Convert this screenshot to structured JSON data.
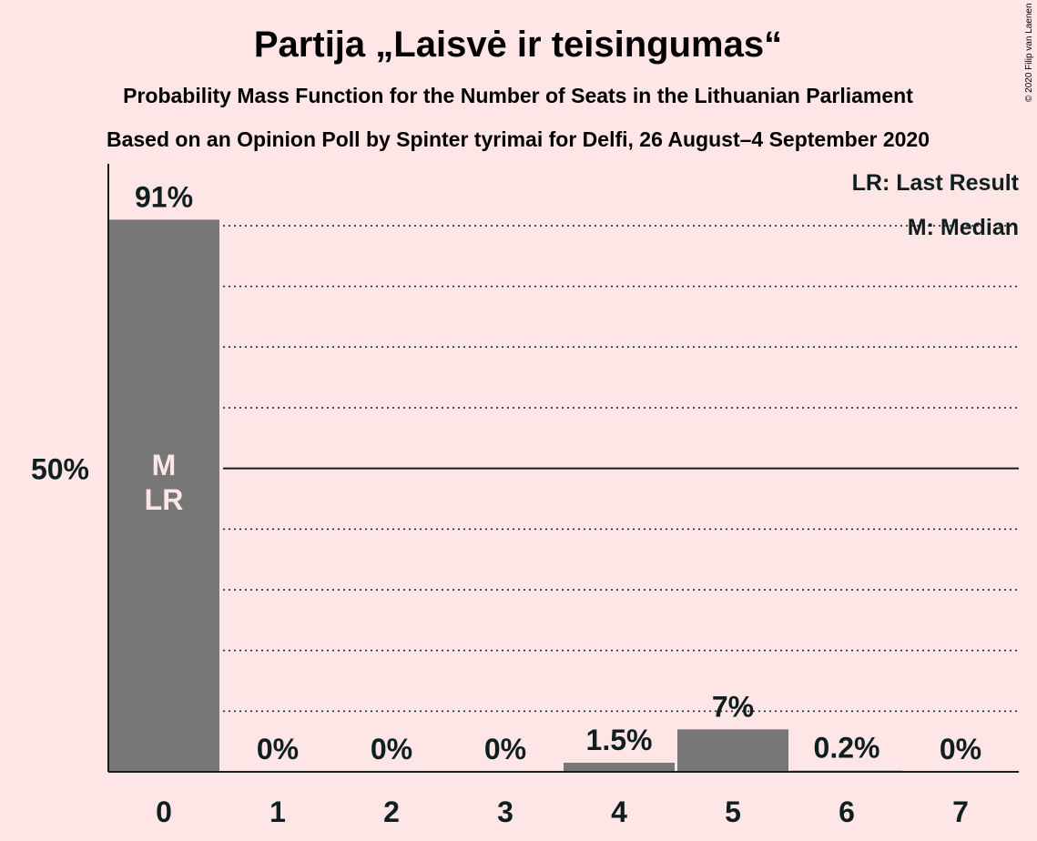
{
  "chart_data": {
    "type": "bar",
    "title": "Partija „Laisvė ir teisingumas“",
    "subtitle": "Probability Mass Function for the Number of Seats in the Lithuanian Parliament",
    "subtitle2": "Based on an Opinion Poll by Spinter tyrimai for Delfi, 26 August–4 September 2020",
    "categories": [
      "0",
      "1",
      "2",
      "3",
      "4",
      "5",
      "6",
      "7"
    ],
    "values": [
      91,
      0,
      0,
      0,
      1.5,
      7,
      0.2,
      0
    ],
    "value_labels": [
      "91%",
      "0%",
      "0%",
      "0%",
      "1.5%",
      "7%",
      "0.2%",
      "0%"
    ],
    "ylim": [
      0,
      100
    ],
    "y_ticks": [
      {
        "value": 50,
        "label": "50%"
      }
    ],
    "gridlines": [
      10,
      20,
      30,
      40,
      60,
      70,
      80,
      90
    ],
    "bar_annotation": {
      "index": 0,
      "lines": [
        "M",
        "LR"
      ]
    },
    "legend": [
      "LR: Last Result",
      "M: Median"
    ],
    "legend_position": "top-right",
    "copyright": "© 2020 Filip van Laenen",
    "colors": {
      "bar": "#777777",
      "background": "#ffe6e6",
      "text": "#0f1f1f",
      "bar_text": "#ffe6e6"
    }
  }
}
